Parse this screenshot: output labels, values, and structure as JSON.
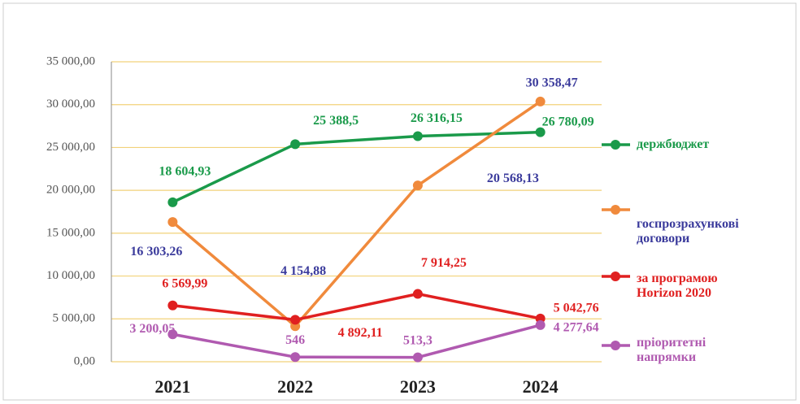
{
  "chart_data": {
    "type": "line",
    "categories": [
      "2021",
      "2022",
      "2023",
      "2024"
    ],
    "ylim": [
      0,
      35000
    ],
    "yticks": [
      {
        "value": 0,
        "label": "0,00"
      },
      {
        "value": 5000,
        "label": "5 000,00"
      },
      {
        "value": 10000,
        "label": "10 000,00"
      },
      {
        "value": 15000,
        "label": "15 000,00"
      },
      {
        "value": 20000,
        "label": "20 000,00"
      },
      {
        "value": 25000,
        "label": "25 000,00"
      },
      {
        "value": 30000,
        "label": "30 000,00"
      },
      {
        "value": 35000,
        "label": "35 000,00"
      }
    ],
    "grid": true,
    "legend": "right",
    "series": [
      {
        "name": "держбюджет",
        "color": "#1a9a4a",
        "label_color": "#1a9a4a",
        "values": [
          18604.93,
          25388.5,
          26316.15,
          26780.09
        ],
        "value_labels": [
          "18 604,93",
          "25 388,5",
          "26 316,15",
          "26 780,09"
        ]
      },
      {
        "name": "госпрозрахункові договори",
        "color": "#f08a3c",
        "label_color": "#3b3b9c",
        "values": [
          16303.26,
          4154.88,
          20568.13,
          30358.47
        ],
        "value_labels": [
          "16 303,26",
          "4 154,88",
          "20 568,13",
          "30 358,47"
        ]
      },
      {
        "name": "за програмою Horizon 2020",
        "color": "#e02020",
        "label_color": "#e02020",
        "values": [
          6569.99,
          4892.11,
          7914.25,
          5042.76
        ],
        "value_labels": [
          "6 569,99",
          "4 892,11",
          "7 914,25",
          "5 042,76"
        ]
      },
      {
        "name": "пріоритетні напрямки",
        "color": "#b05ab0",
        "label_color": "#b05ab0",
        "values": [
          3200.05,
          546,
          513.3,
          4277.64
        ],
        "value_labels": [
          "3 200,05",
          "546",
          "513,3",
          "4 277,64"
        ]
      }
    ]
  }
}
